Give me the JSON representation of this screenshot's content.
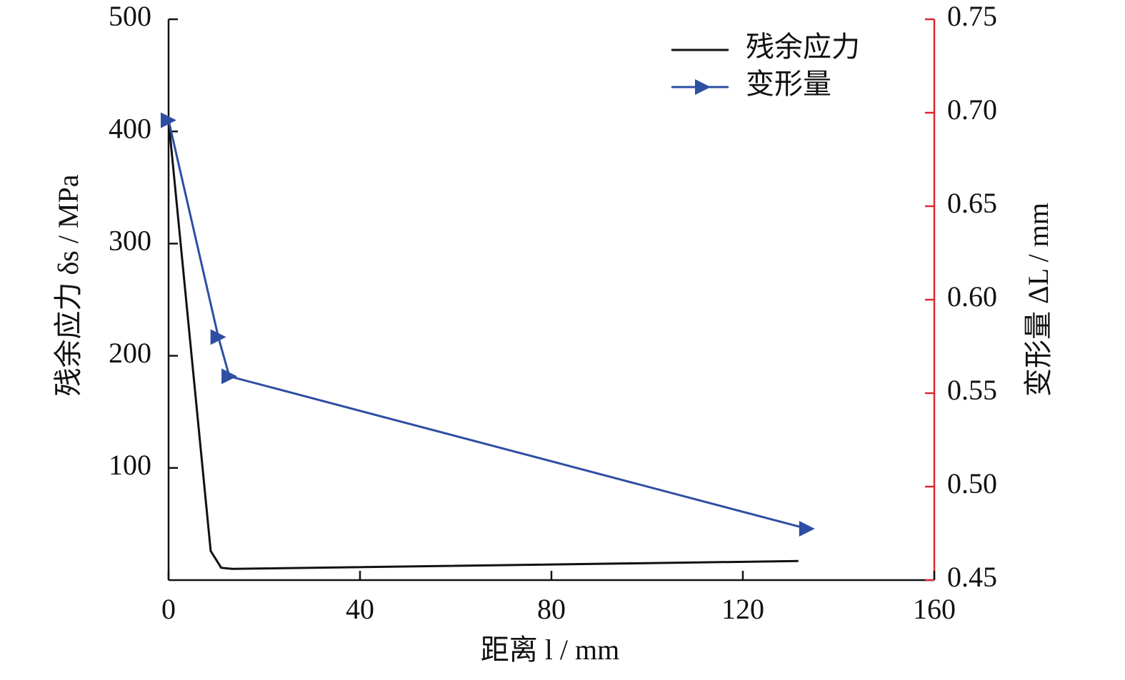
{
  "chart_data": {
    "type": "line",
    "x_label": "距离 l / mm",
    "y_label": "残余应力 δs / MPa",
    "y2_label": "变形量 ΔL / mm",
    "xlim": [
      0,
      160
    ],
    "xticks": [
      0,
      40,
      80,
      120,
      160
    ],
    "ylim": [
      0,
      500
    ],
    "yticks": [
      100,
      200,
      300,
      400,
      500
    ],
    "y2lim": [
      0.45,
      0.75
    ],
    "y2ticks": [
      {
        "value": 0.45,
        "label": "0.45"
      },
      {
        "value": 0.5,
        "label": "0.50"
      },
      {
        "value": 0.55,
        "label": "0.55"
      },
      {
        "value": 0.6,
        "label": "0.60"
      },
      {
        "value": 0.65,
        "label": "0.65"
      },
      {
        "value": 0.7,
        "label": "0.70"
      },
      {
        "value": 0.75,
        "label": "0.75"
      }
    ],
    "y2_color": "#e0262f",
    "legend": "upper right",
    "series": [
      {
        "name": "残余应力",
        "color": "#111111",
        "marker": "none",
        "x": [
          0,
          8.8,
          11,
          13.3,
          131.6
        ],
        "values": [
          410,
          26,
          11,
          10,
          17
        ]
      },
      {
        "name": "变形量",
        "color": "#2e4ea3",
        "marker": "triangle-right",
        "axis": "y2",
        "x": [
          0,
          10.4,
          12.7,
          133.4
        ],
        "values": [
          0.696,
          0.58,
          0.559,
          0.4775
        ]
      }
    ]
  }
}
